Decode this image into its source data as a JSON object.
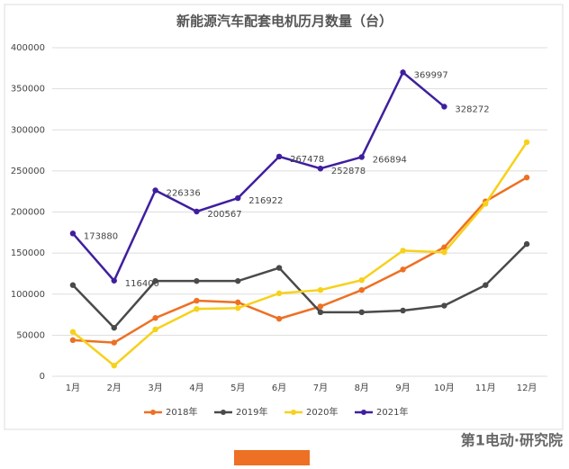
{
  "chart_data": {
    "type": "line",
    "title": "新能源汽车配套电机历月数量（台）",
    "categories": [
      "1月",
      "2月",
      "3月",
      "4月",
      "5月",
      "6月",
      "7月",
      "8月",
      "9月",
      "10月",
      "11月",
      "12月"
    ],
    "series": [
      {
        "name": "2018年",
        "color": "#ed7024",
        "values": [
          44000,
          41000,
          71000,
          92000,
          90000,
          70000,
          85000,
          105000,
          130000,
          157000,
          213000,
          242000
        ]
      },
      {
        "name": "2019年",
        "color": "#4a4a4a",
        "values": [
          111000,
          59000,
          116000,
          116000,
          116000,
          132000,
          78000,
          78000,
          80000,
          86000,
          111000,
          161000
        ]
      },
      {
        "name": "2020年",
        "color": "#f7d11a",
        "values": [
          54000,
          13000,
          57000,
          82000,
          83000,
          101000,
          105000,
          117000,
          153000,
          151000,
          210000,
          285000
        ]
      },
      {
        "name": "2021年",
        "color": "#3f1f9e",
        "values": [
          173880,
          116400,
          226336,
          200567,
          216922,
          267478,
          252878,
          266894,
          369997,
          328272,
          null,
          null
        ],
        "data_labels": true
      }
    ],
    "ylim": [
      0,
      400000
    ],
    "yticks": [
      0,
      50000,
      100000,
      150000,
      200000,
      250000,
      300000,
      350000,
      400000
    ],
    "grid": true,
    "legend": "bottom",
    "watermark": "第1电动·研究院"
  }
}
